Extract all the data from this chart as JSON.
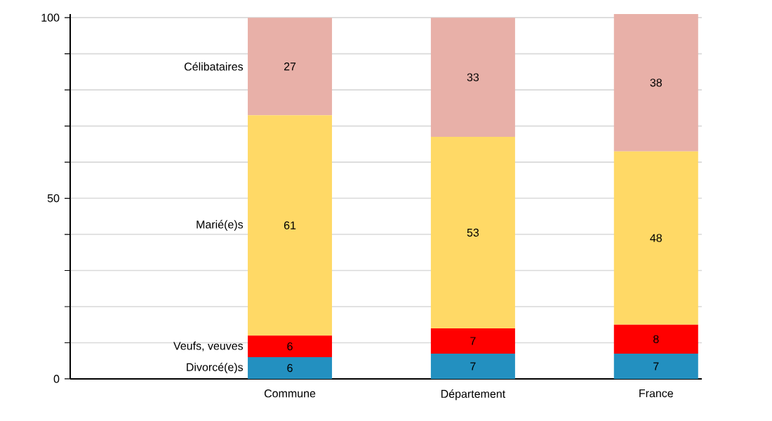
{
  "chart_data": {
    "type": "bar",
    "stacked": true,
    "categories": [
      "Commune",
      "Département",
      "France"
    ],
    "series": [
      {
        "name": "Divorcé(e)s",
        "color": "#2390c0",
        "values": [
          6,
          7,
          7
        ]
      },
      {
        "name": "Veufs, veuves",
        "color": "#ff0000",
        "values": [
          6,
          7,
          8
        ]
      },
      {
        "name": "Marié(e)s",
        "color": "#ffd966",
        "values": [
          61,
          53,
          48
        ]
      },
      {
        "name": "Célibataires",
        "color": "#e8b0a8",
        "values": [
          27,
          33,
          38
        ]
      }
    ],
    "ylim": [
      0,
      101
    ],
    "yticks": [
      0,
      {
        "value": 10,
        "label": null
      },
      {
        "value": 20,
        "label": null
      },
      {
        "value": 30,
        "label": null
      },
      {
        "value": 40,
        "label": null
      },
      50,
      {
        "value": 60,
        "label": null
      },
      {
        "value": 70,
        "label": null
      },
      {
        "value": 80,
        "label": null
      },
      {
        "value": 90,
        "label": null
      },
      100
    ],
    "grid": "y",
    "data_labels": true
  }
}
